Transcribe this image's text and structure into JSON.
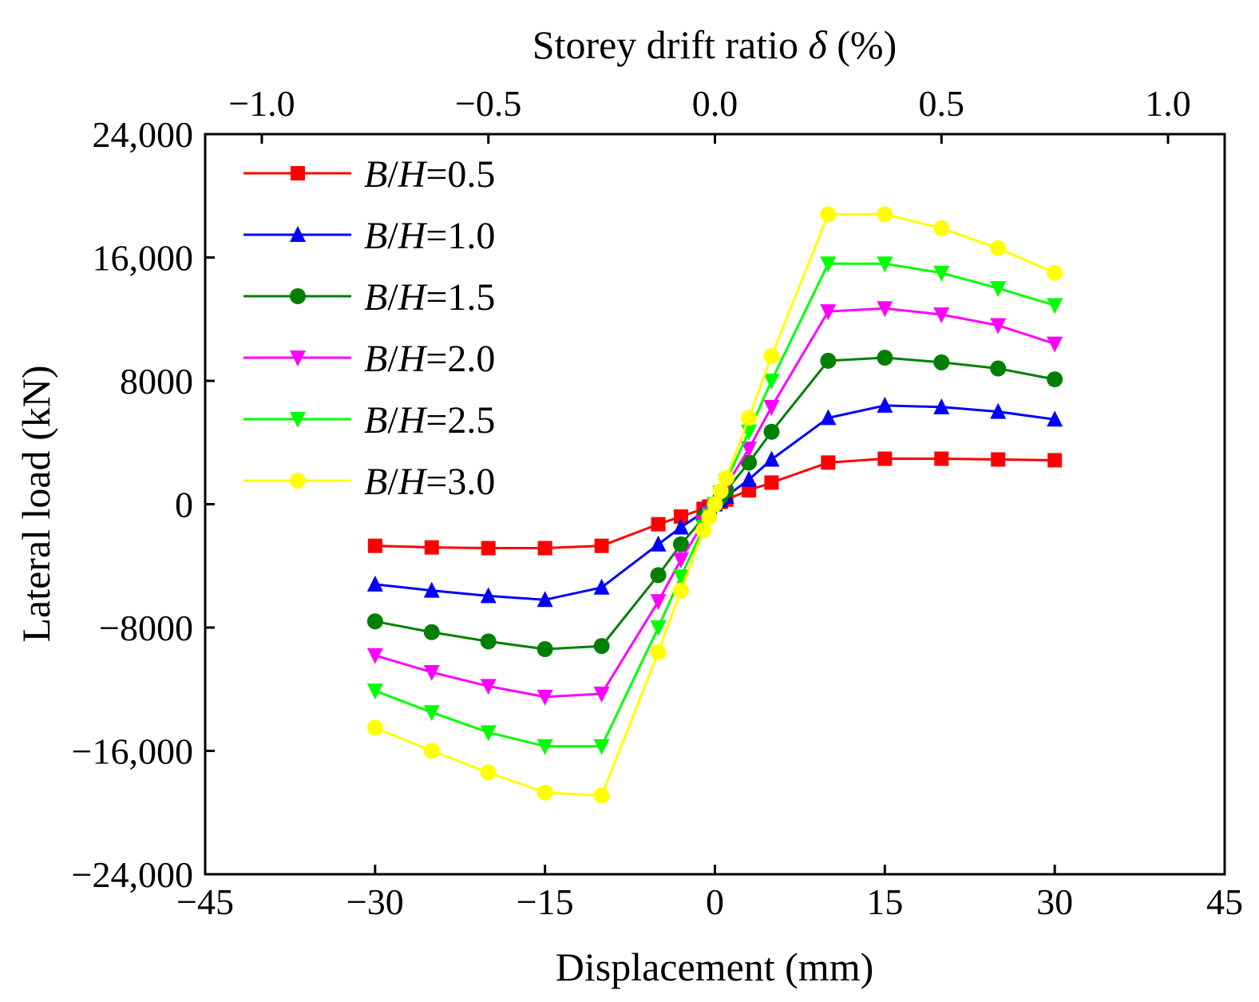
{
  "chart_data": {
    "type": "line",
    "xlabel": "Displacement (mm)",
    "ylabel": "Lateral load (kN)",
    "top_xlabel": {
      "prefix": "Storey drift ratio ",
      "symbol": "δ",
      "suffix": " (%)"
    },
    "xlim": [
      -45,
      45
    ],
    "ylim": [
      -24000,
      24000
    ],
    "top_xlim": [
      -1.125,
      1.125
    ],
    "x_ticks": [
      -45,
      -30,
      -15,
      0,
      15,
      30,
      45
    ],
    "x_tick_labels": [
      "−45",
      "−30",
      "−15",
      "0",
      "15",
      "30",
      "45"
    ],
    "y_ticks": [
      -24000,
      -16000,
      -8000,
      0,
      8000,
      16000,
      24000
    ],
    "y_tick_labels": [
      "−24,000",
      "−16,000",
      "−8000",
      "0",
      "8000",
      "16,000",
      "24,000"
    ],
    "top_x_ticks": [
      -1.0,
      -0.5,
      0.0,
      0.5,
      1.0
    ],
    "top_x_tick_labels": [
      "−1.0",
      "−0.5",
      "0.0",
      "0.5",
      "1.0"
    ],
    "grid": false,
    "legend_position": "top-left",
    "x": [
      -30,
      -25,
      -20,
      -15,
      -10,
      -5,
      -3,
      -1,
      -0.5,
      0,
      0.5,
      1,
      3,
      5,
      10,
      15,
      20,
      25,
      30
    ],
    "series": [
      {
        "name": "B/H=0.5",
        "name_parts": [
          "B",
          "/",
          "H",
          "=0.5"
        ],
        "color": "#ff0000",
        "marker": "square",
        "values": [
          -2700,
          -2800,
          -2850,
          -2850,
          -2700,
          -1300,
          -800,
          -300,
          -150,
          0,
          150,
          300,
          900,
          1400,
          2700,
          2950,
          2950,
          2900,
          2850
        ]
      },
      {
        "name": "B/H=1.0",
        "name_parts": [
          "B",
          "/",
          "H",
          "=1.0"
        ],
        "color": "#0000ff",
        "marker": "triangle-up",
        "values": [
          -5200,
          -5600,
          -5950,
          -6200,
          -5400,
          -2600,
          -1500,
          -500,
          -250,
          0,
          250,
          500,
          1600,
          2900,
          5600,
          6400,
          6300,
          6000,
          5500
        ]
      },
      {
        "name": "B/H=1.5",
        "name_parts": [
          "B",
          "/",
          "H",
          "=1.5"
        ],
        "color": "#008000",
        "marker": "circle",
        "values": [
          -7600,
          -8300,
          -8900,
          -9400,
          -9200,
          -4600,
          -2600,
          -900,
          -450,
          0,
          450,
          900,
          2700,
          4700,
          9300,
          9500,
          9200,
          8800,
          8100
        ]
      },
      {
        "name": "B/H=2.0",
        "name_parts": [
          "B",
          "/",
          "H",
          "=2.0"
        ],
        "color": "#ff00ff",
        "marker": "triangle-down",
        "values": [
          -9800,
          -10900,
          -11800,
          -12500,
          -12300,
          -6300,
          -3600,
          -1200,
          -600,
          0,
          600,
          1200,
          3600,
          6300,
          12500,
          12700,
          12300,
          11600,
          10400
        ]
      },
      {
        "name": "B/H=2.5",
        "name_parts": [
          "B",
          "/",
          "H",
          "=2.5"
        ],
        "color": "#00ff00",
        "marker": "triangle-down",
        "values": [
          -12100,
          -13500,
          -14800,
          -15700,
          -15700,
          -8000,
          -4700,
          -1500,
          -750,
          0,
          750,
          1500,
          4700,
          8000,
          15600,
          15600,
          15000,
          14000,
          12900
        ]
      },
      {
        "name": "B/H=3.0",
        "name_parts": [
          "B",
          "/",
          "H",
          "=3.0"
        ],
        "color": "#ffff00",
        "marker": "circle",
        "values": [
          -14500,
          -16000,
          -17400,
          -18700,
          -18900,
          -9600,
          -5600,
          -1700,
          -850,
          0,
          850,
          1700,
          5600,
          9600,
          18800,
          18800,
          17900,
          16600,
          15000
        ]
      }
    ]
  }
}
